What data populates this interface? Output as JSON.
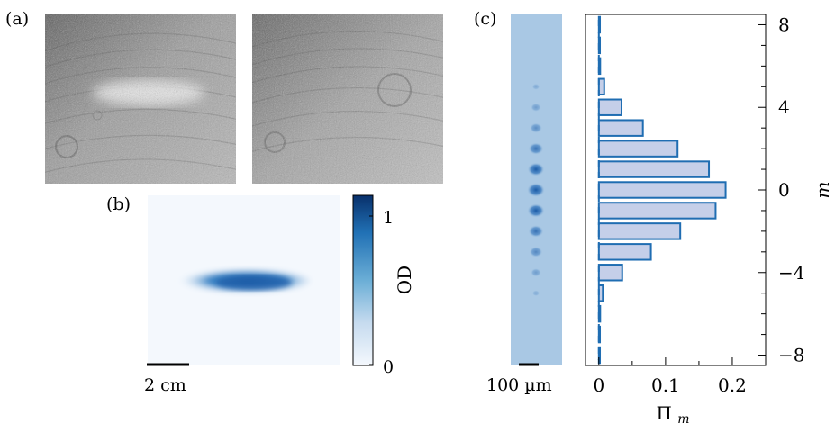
{
  "panel_a": {
    "label": "(a)"
  },
  "panel_b": {
    "label": "(b)",
    "scale_bar_label": "2 cm",
    "colorbar": {
      "label": "OD",
      "ticks": [
        "0",
        "1"
      ],
      "range": [
        0,
        1.15
      ],
      "colormap": [
        "#f4f8fd",
        "#c6dbef",
        "#6baed6",
        "#2171b5",
        "#08306b"
      ]
    }
  },
  "panel_c": {
    "label": "(c)",
    "scale_bar_label": "100 µm",
    "image_background": "#a9c8e4"
  },
  "chart_data": {
    "type": "bar",
    "orientation": "horizontal",
    "xlabel": "Π_m",
    "ylabel": "m",
    "xlim": [
      -0.02,
      0.25
    ],
    "ylim": [
      -8.5,
      8.5
    ],
    "xticks": [
      "0",
      "0.1",
      "0.2"
    ],
    "xtick_values": [
      0,
      0.1,
      0.2
    ],
    "yticks": [
      "8",
      "4",
      "0",
      "−4",
      "−8"
    ],
    "ytick_values": [
      8,
      4,
      0,
      -4,
      -8
    ],
    "categories": [
      8,
      7,
      6,
      5,
      4,
      3,
      2,
      1,
      0,
      -1,
      -2,
      -3,
      -4,
      -5,
      -6,
      -7,
      -8
    ],
    "values": [
      0.001,
      0.001,
      0.002,
      0.008,
      0.034,
      0.066,
      0.118,
      0.165,
      0.19,
      0.175,
      0.122,
      0.078,
      0.035,
      0.006,
      0.002,
      0.001,
      0.001
    ],
    "bar_fill": "#c5cfe9",
    "bar_edge": "#1f6db2",
    "grid": false
  }
}
